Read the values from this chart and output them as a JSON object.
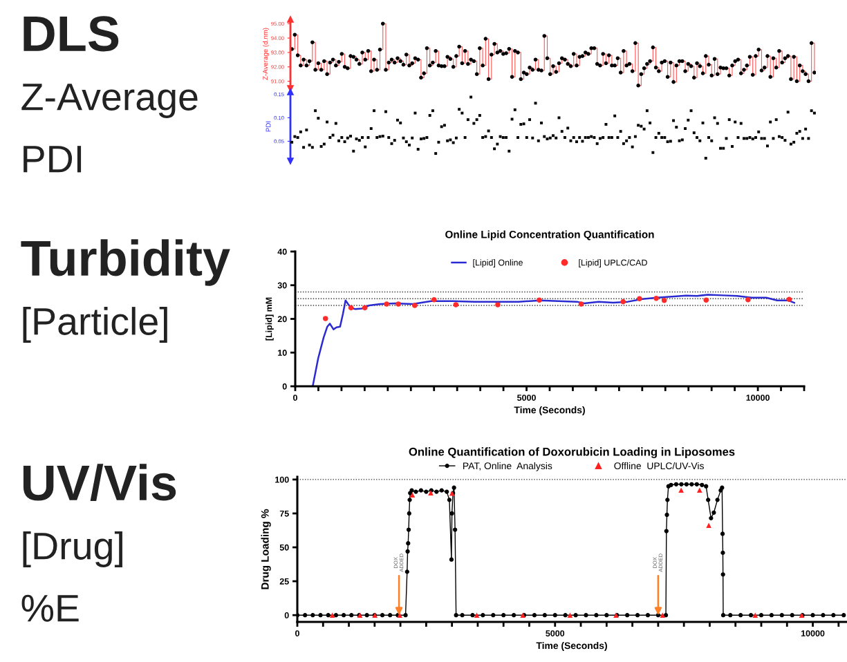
{
  "chart_data": [
    {
      "type": "other",
      "title": "DLS",
      "annotations": [
        "Z-Average",
        "PDI"
      ]
    },
    {
      "type": "step",
      "ylabel": "Z-Average (d.nm)",
      "tick_labels": "y",
      "marker": "circle",
      "categories": [
        null,
        null,
        null,
        null,
        null,
        null,
        null,
        null,
        null,
        null,
        null,
        null,
        null,
        null,
        null,
        null,
        null,
        null,
        null,
        null,
        null,
        null,
        null,
        null,
        null,
        null,
        null,
        null,
        null,
        null,
        null,
        null,
        null,
        null,
        null,
        null,
        null,
        null,
        null,
        null,
        null,
        null,
        null,
        null,
        null,
        null,
        null,
        null,
        null,
        null,
        null,
        null,
        null,
        null,
        null,
        null,
        null,
        null,
        null,
        null,
        null,
        null,
        null,
        null,
        null,
        null,
        null,
        null,
        null,
        null,
        null,
        null,
        null,
        null,
        null,
        null,
        null,
        null,
        null,
        null,
        null,
        null,
        null,
        null,
        null,
        null,
        null,
        null,
        null,
        null,
        null,
        null,
        null,
        null,
        null,
        null,
        null,
        null,
        null,
        null,
        null,
        null,
        null,
        null,
        null,
        null,
        null,
        null,
        null,
        null,
        null,
        null,
        null,
        null,
        null,
        null,
        null,
        null,
        null,
        null,
        null,
        null,
        null,
        null,
        null,
        null,
        null,
        null,
        null,
        null,
        null,
        null,
        null,
        null,
        null,
        null,
        null,
        null,
        null,
        null,
        null,
        null,
        null,
        null,
        null,
        null,
        null,
        null,
        null,
        null,
        null,
        null,
        null,
        null,
        null,
        null,
        null,
        null,
        null,
        null,
        null,
        null,
        null,
        null,
        null,
        null,
        null,
        null,
        null,
        null,
        null,
        null,
        null,
        null,
        null,
        null,
        null,
        null,
        null
      ],
      "series": [
        {
          "color": "#ff5555",
          "values": [
            93.24,
            94.23,
            92.8,
            92.1,
            92.5,
            92.1,
            92.4,
            93.7,
            91.8,
            92.25,
            91.8,
            92.4,
            91.5,
            92.3,
            92.5,
            92.1,
            92.35,
            92.9,
            92.0,
            91.9,
            92.75,
            92.7,
            92.5,
            92.2,
            93.0,
            92.5,
            93.1,
            91.7,
            92.5,
            91.8,
            93.2,
            95.0,
            91.8,
            92.3,
            92.5,
            92.3,
            92.6,
            92.4,
            92.15,
            92.85,
            92.1,
            92.25,
            92.6,
            92.5,
            91.25,
            91.55,
            93.3,
            92.1,
            92.3,
            93.1,
            92.1,
            92.05,
            92.05,
            92.7,
            92.55,
            92.0,
            92.75,
            93.4,
            92.25,
            93.1,
            92.2,
            92.5,
            92.4,
            91.5,
            93.3,
            92.1,
            93.95,
            91.15,
            92.85,
            93.6,
            93.0,
            93.1,
            92.9,
            92.95,
            93.25,
            91.3,
            93.1,
            93.0,
            91.15,
            91.6,
            91.5,
            91.95,
            91.8,
            92.5,
            91.8,
            91.75,
            94.15,
            92.6,
            91.5,
            92.05,
            91.65,
            92.25,
            92.6,
            92.5,
            92.2,
            92.05,
            92.9,
            92.1,
            92.7,
            92.75,
            93.0,
            92.9,
            93.3,
            93.3,
            92.2,
            92.1,
            92.9,
            92.25,
            92.8,
            92.1,
            92.1,
            92.6,
            91.6,
            93.1,
            92.1,
            92.2,
            91.7,
            93.65,
            90.7,
            91.5,
            91.9,
            92.2,
            92.4,
            93.35,
            91.95,
            91.7,
            92.3,
            92.4,
            91.3,
            92.3,
            90.95,
            92.1,
            92.4,
            92.4,
            91.7,
            92.2,
            92.05,
            91.25,
            92.25,
            92.05,
            91.55,
            92.75,
            92.15,
            91.4,
            92.55,
            91.5,
            91.95,
            91.9,
            91.9,
            91.4,
            92.1,
            92.4,
            92.5,
            91.55,
            91.8,
            92.1,
            92.7,
            91.45,
            92.75,
            93.2,
            91.75,
            91.95,
            92.75,
            91.3,
            92.6,
            91.95,
            93.1,
            92.3,
            92.6,
            92.75,
            91.15,
            92.7,
            91.0,
            92.1,
            91.7,
            91.5,
            91.0,
            93.65,
            91.6
          ]
        }
      ],
      "ylim": [
        90.5,
        95.3
      ],
      "yticks": [
        {
          "value": 91,
          "label": "91.00"
        },
        {
          "value": 92,
          "label": "92.00"
        },
        {
          "value": 93,
          "label": "93.00"
        },
        {
          "value": 94,
          "label": "94.00"
        },
        {
          "value": 95,
          "label": "95.00"
        }
      ]
    },
    {
      "type": "scatter",
      "ylabel": "PDI",
      "tick_labels": "y",
      "marker": "square",
      "categories": [
        null,
        null,
        null,
        null,
        null,
        null,
        null,
        null,
        null,
        null,
        null,
        null,
        null,
        null,
        null,
        null,
        null,
        null,
        null,
        null,
        null,
        null,
        null,
        null,
        null,
        null,
        null,
        null,
        null,
        null,
        null,
        null,
        null,
        null,
        null,
        null,
        null,
        null,
        null,
        null,
        null,
        null,
        null,
        null,
        null,
        null,
        null,
        null,
        null,
        null,
        null,
        null,
        null,
        null,
        null,
        null,
        null,
        null,
        null,
        null,
        null,
        null,
        null,
        null,
        null,
        null,
        null,
        null,
        null,
        null,
        null,
        null,
        null,
        null,
        null,
        null,
        null,
        null,
        null,
        null,
        null,
        null,
        null,
        null,
        null,
        null,
        null,
        null,
        null,
        null,
        null,
        null,
        null,
        null,
        null,
        null,
        null,
        null,
        null,
        null,
        null,
        null,
        null,
        null,
        null,
        null,
        null,
        null,
        null,
        null,
        null,
        null,
        null,
        null,
        null,
        null,
        null,
        null,
        null,
        null,
        null,
        null,
        null,
        null,
        null,
        null,
        null,
        null,
        null,
        null,
        null,
        null,
        null,
        null,
        null,
        null,
        null,
        null,
        null,
        null,
        null,
        null,
        null,
        null,
        null,
        null,
        null,
        null,
        null,
        null,
        null,
        null,
        null,
        null,
        null,
        null,
        null,
        null,
        null,
        null,
        null,
        null,
        null,
        null,
        null,
        null,
        null,
        null,
        null,
        null,
        null,
        null,
        null,
        null,
        null,
        null,
        null,
        null,
        null
      ],
      "series": [
        {
          "color": "#000000",
          "values": [
            0.048,
            0.06,
            0.058,
            0.07,
            0.037,
            0.074,
            0.042,
            0.037,
            0.115,
            0.099,
            0.039,
            0.044,
            0.091,
            0.058,
            0.063,
            0.088,
            0.051,
            0.058,
            0.049,
            0.057,
            0.061,
            0.029,
            0.055,
            0.052,
            0.058,
            0.038,
            0.058,
            0.077,
            0.115,
            0.058,
            0.06,
            0.061,
            0.113,
            0.058,
            0.045,
            0.052,
            0.095,
            0.089,
            0.057,
            0.049,
            0.042,
            0.057,
            0.11,
            0.033,
            0.055,
            0.056,
            0.058,
            0.105,
            0.115,
            0.024,
            0.048,
            0.081,
            0.084,
            0.051,
            0.053,
            0.047,
            0.057,
            0.118,
            0.11,
            0.058,
            0.096,
            0.144,
            0.088,
            0.096,
            0.105,
            0.058,
            0.06,
            0.072,
            0.058,
            0.034,
            0.044,
            0.06,
            0.058,
            0.058,
            0.029,
            0.097,
            0.117,
            0.058,
            0.086,
            0.087,
            0.058,
            0.096,
            0.057,
            0.131,
            0.051,
            0.089,
            0.06,
            0.055,
            0.057,
            0.062,
            0.057,
            0.1,
            0.071,
            0.058,
            0.078,
            0.051,
            0.058,
            0.049,
            0.058,
            0.05,
            0.058,
            0.058,
            0.06,
            0.058,
            0.045,
            0.056,
            0.058,
            0.086,
            0.058,
            0.058,
            0.104,
            0.058,
            0.071,
            0.045,
            0.051,
            0.058,
            0.038,
            0.06,
            0.084,
            0.082,
            0.076,
            0.115,
            0.089,
            0.026,
            0.058,
            0.067,
            0.058,
            0.058,
            0.049,
            0.05,
            0.094,
            0.08,
            0.051,
            0.053,
            0.077,
            0.095,
            0.115,
            0.068,
            0.058,
            0.051,
            0.089,
            0.014,
            0.058,
            0.051,
            0.1,
            0.088,
            0.035,
            0.035,
            0.056,
            0.096,
            0.039,
            0.091,
            0.058,
            0.088,
            0.056,
            0.056,
            0.058,
            0.055,
            0.058,
            0.07,
            0.056,
            0.056,
            0.04,
            0.091,
            0.056,
            0.096,
            0.06,
            0.058,
            0.052,
            0.112,
            0.044,
            0.048,
            0.067,
            0.071,
            0.056,
            0.076,
            0.056,
            0.115,
            0.11
          ]
        }
      ],
      "ylim": [
        0.008,
        0.155
      ],
      "yticks": [
        {
          "value": 0.05,
          "label": "0.05"
        },
        {
          "value": 0.1,
          "label": "0.10"
        },
        {
          "value": 0.15,
          "label": "0.15"
        }
      ]
    },
    {
      "type": "other",
      "title": "Turbidity",
      "annotations": [
        "[Particle]"
      ]
    },
    {
      "type": "line",
      "title": "Online Lipid Concentration Quantification",
      "xlabel": "Time (Seconds)",
      "ylabel": "[Lipid] mM",
      "legend": "top",
      "series": [
        {
          "name": "[Lipid] Online",
          "type": "line",
          "color": "#2a2ad0",
          "x": [
            378,
            496,
            614,
            693,
            748,
            827,
            890,
            969,
            1031,
            1087,
            1142,
            1205,
            1299,
            1441,
            1598,
            1835,
            2150,
            2543,
            2937,
            3409,
            3882,
            4354,
            4827,
            5299,
            5693,
            6087,
            6244,
            6559,
            6874,
            7189,
            7504,
            7819,
            8134,
            8449,
            8685,
            8921,
            9236,
            9551,
            9866,
            10181,
            10417,
            10654,
            10787
          ],
          "values": [
            0,
            8.3,
            14.5,
            17.7,
            18.6,
            16.9,
            17.5,
            17.7,
            21.5,
            25.5,
            24.4,
            23.3,
            22.9,
            23.1,
            24.0,
            24.4,
            24.6,
            24.4,
            25.3,
            25.3,
            25.1,
            25.1,
            25.1,
            25.5,
            25.3,
            25.1,
            24.6,
            25.1,
            24.8,
            25.1,
            25.9,
            26.3,
            26.6,
            26.9,
            26.8,
            27.2,
            27.0,
            26.8,
            26.3,
            26.3,
            25.5,
            25.5,
            24.8
          ]
        },
        {
          "name": "[Lipid] UPLC/CAD",
          "type": "scatter",
          "marker": "circle",
          "color": "#ff2a2a",
          "x": [
            654,
            1205,
            1504,
            1976,
            2228,
            2583,
            3000,
            3472,
            4378,
            5276,
            6181,
            7087,
            7441,
            7803,
            7976,
            8882,
            9787,
            10677
          ],
          "values": [
            20.1,
            23.3,
            23.3,
            24.4,
            24.4,
            24.0,
            25.7,
            24.2,
            24.2,
            25.6,
            24.4,
            25.1,
            26.0,
            26.1,
            25.5,
            25.6,
            25.7,
            25.8
          ]
        }
      ],
      "ref_lines": [
        {
          "axis": "y",
          "value": 28,
          "line_style": "dotted",
          "color": "#333333"
        },
        {
          "axis": "y",
          "value": 26,
          "line_style": "dotted",
          "color": "#333333"
        },
        {
          "axis": "y",
          "value": 24,
          "line_style": "dotted",
          "color": "#333333"
        }
      ],
      "xlim": [
        0,
        11000
      ],
      "ylim": [
        0,
        40
      ],
      "yticks": [
        0,
        10,
        20,
        30,
        40
      ],
      "xticks": [
        0,
        {
          "value": 500,
          "label": null
        },
        {
          "value": 1000,
          "label": null
        },
        {
          "value": 1500,
          "label": null
        },
        {
          "value": 2000,
          "label": null
        },
        {
          "value": 2500,
          "label": null
        },
        {
          "value": 3000,
          "label": null
        },
        {
          "value": 3500,
          "label": null
        },
        {
          "value": 4000,
          "label": null
        },
        {
          "value": 4500,
          "label": null
        },
        5000,
        {
          "value": 5500,
          "label": null
        },
        {
          "value": 6000,
          "label": null
        },
        {
          "value": 6500,
          "label": null
        },
        {
          "value": 7000,
          "label": null
        },
        {
          "value": 7500,
          "label": null
        },
        {
          "value": 8000,
          "label": null
        },
        {
          "value": 8500,
          "label": null
        },
        {
          "value": 9000,
          "label": null
        },
        {
          "value": 9500,
          "label": null
        },
        10000,
        {
          "value": 10500,
          "label": null
        },
        {
          "value": 11000,
          "label": null
        }
      ]
    },
    {
      "type": "other",
      "title": "UV/Vis",
      "annotations": [
        "[Drug]",
        "%E"
      ]
    },
    {
      "type": "line",
      "title": "Online Quantification of Doxorubicin Loading in Liposomes",
      "xlabel": "Time (Seconds)",
      "ylabel": "Drug Loading %",
      "legend": "top",
      "series": [
        {
          "name": "PAT, Online  Analysis",
          "type": "line",
          "marker": "circle",
          "color": "#000000",
          "x": [
            0,
            150,
            300,
            450,
            600,
            750,
            900,
            1050,
            1200,
            1350,
            1500,
            1650,
            1800,
            1950,
            2100,
            2130,
            2140,
            2150,
            2160,
            2170,
            2180,
            2190,
            2220,
            2300,
            2400,
            2500,
            2600,
            2700,
            2800,
            2900,
            2950,
            2990,
            3000,
            3020,
            3040,
            3060,
            3080,
            3200,
            3400,
            3600,
            3800,
            4000,
            4200,
            4400,
            4600,
            4800,
            5000,
            5200,
            5400,
            5600,
            5800,
            6000,
            6200,
            6400,
            6600,
            6800,
            7000,
            7150,
            7160,
            7170,
            7180,
            7200,
            7250,
            7350,
            7450,
            7550,
            7650,
            7750,
            7850,
            7930,
            7970,
            8026,
            8080,
            8150,
            8214,
            8240,
            8250,
            8255,
            8258,
            8262,
            8400,
            8600,
            8800,
            9000,
            9200,
            9400,
            9600,
            9800,
            10000,
            10200,
            10400,
            10600
          ],
          "values": [
            0,
            0,
            0,
            0,
            0,
            0,
            0,
            0,
            0,
            0,
            0,
            0,
            0,
            0,
            0,
            32,
            47,
            53,
            63,
            75,
            85,
            90,
            92,
            91,
            92,
            91,
            92,
            91,
            92,
            91,
            85,
            41,
            75,
            90,
            94,
            63,
            0,
            0,
            0,
            0,
            0,
            0,
            0,
            0,
            0,
            0,
            0,
            0,
            0,
            0,
            0,
            0,
            0,
            0,
            0,
            0,
            0,
            0,
            62,
            74,
            85,
            95,
            96,
            96.5,
            96.5,
            96.5,
            96.5,
            96.5,
            96,
            95,
            85,
            71.5,
            75.6,
            85,
            92,
            94,
            60,
            46,
            30,
            0,
            0,
            0,
            0,
            0,
            0,
            0,
            0,
            0,
            0,
            0,
            0,
            0
          ]
        },
        {
          "name": "Offline  UPLC/UV-Vis",
          "type": "scatter",
          "marker": "triangle",
          "color": "#ff2020",
          "x": [
            679,
            1214,
            1504,
            1986,
            2232,
            2589,
            3000,
            3482,
            4375,
            5290,
            6183,
            7085,
            7446,
            7804,
            7982,
            8883,
            9785
          ],
          "values": [
            0,
            0,
            0,
            0,
            88.6,
            90.2,
            89.9,
            0,
            0,
            0,
            0,
            0,
            92.2,
            92.2,
            66.2,
            0,
            0
          ]
        }
      ],
      "ref_lines": [
        {
          "axis": "y",
          "value": 100,
          "line_style": "dotted",
          "color": "#333333"
        }
      ],
      "annotations": [
        {
          "text": "DOX\nADDED",
          "x": 1973,
          "y": 0
        },
        {
          "text": "DOX\nADDED",
          "x": 7000,
          "y": 0
        }
      ],
      "xlim": [
        0,
        10650
      ],
      "ylim": [
        -5,
        102
      ],
      "yticks": [
        0,
        25,
        50,
        75,
        100
      ],
      "xticks": [
        0,
        {
          "value": 500,
          "label": null
        },
        {
          "value": 1000,
          "label": null
        },
        {
          "value": 1500,
          "label": null
        },
        {
          "value": 2000,
          "label": null
        },
        {
          "value": 2500,
          "label": null
        },
        {
          "value": 3000,
          "label": null
        },
        {
          "value": 3500,
          "label": null
        },
        {
          "value": 4000,
          "label": null
        },
        {
          "value": 4500,
          "label": null
        },
        5000,
        {
          "value": 5500,
          "label": null
        },
        {
          "value": 6000,
          "label": null
        },
        {
          "value": 6500,
          "label": null
        },
        {
          "value": 7000,
          "label": null
        },
        {
          "value": 7500,
          "label": null
        },
        {
          "value": 8000,
          "label": null
        },
        {
          "value": 8500,
          "label": null
        },
        {
          "value": 9000,
          "label": null
        },
        {
          "value": 9500,
          "label": null
        },
        10000,
        {
          "value": 10500,
          "label": null
        }
      ]
    }
  ]
}
